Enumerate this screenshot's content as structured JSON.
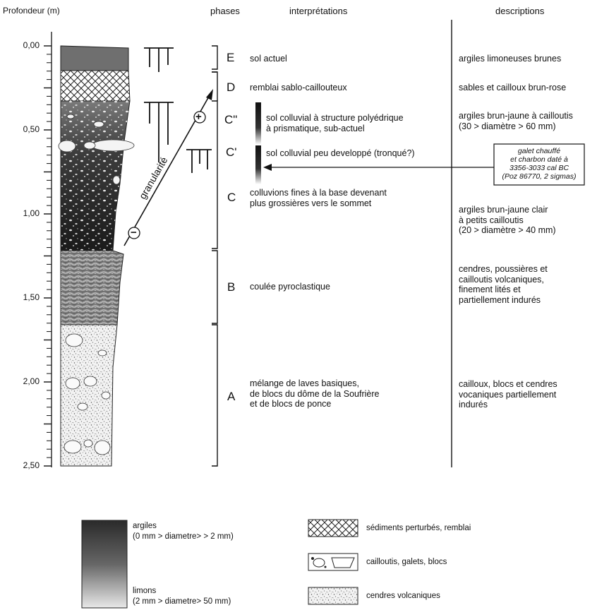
{
  "headers": {
    "depth": "Profondeur (m)",
    "phases": "phases",
    "interpretations": "interprétations",
    "descriptions": "descriptions"
  },
  "depth_ticks": [
    "0,00",
    "0,50",
    "1,00",
    "1,50",
    "2,00",
    "2,50"
  ],
  "phases": [
    {
      "letter": "E",
      "interpretation": "sol actuel",
      "description": "argiles limoneuses brunes"
    },
    {
      "letter": "D",
      "interpretation": "remblai sablo-caillouteux",
      "description": "sables et cailloux brun-rose"
    },
    {
      "letter": "C\"",
      "interpretation": "sol colluvial à structure polyédrique\nà prismatique, sub-actuel",
      "description": "argiles brun-jaune à cailloutis\n(30 > diamètre > 60 mm)"
    },
    {
      "letter": "C'",
      "interpretation": "sol colluvial peu developpé (tronqué?)"
    },
    {
      "letter": "C",
      "interpretation": "colluvions fines à la base devenant\nplus grossières vers le sommet",
      "description": "argiles brun-jaune clair\nà petits cailloutis\n(20 > diamètre > 40 mm)"
    },
    {
      "letter": "B",
      "interpretation": "coulée pyroclastique",
      "description": "cendres, poussières et\ncailloutis volcaniques,\nfinement lités et\npartiellement indurés"
    },
    {
      "letter": "A",
      "interpretation": "mélange de laves basiques,\nde blocs du dôme de la Soufrière\net de blocs de ponce",
      "description": "cailloux, blocs et cendres\nvocaniques partiellement\nindurés"
    }
  ],
  "dating_box": "galet chauffé\net charbon daté à\n3356-3033 cal BC\n(Poz 86770, 2 sigmas)",
  "granularity": {
    "label": "granularité",
    "plus": "+",
    "minus": "−"
  },
  "legend": {
    "gradient_top": "argiles\n(0 mm > diametre> > 2  mm)",
    "gradient_bottom": "limons\n(2 mm > diametre> 50  mm)",
    "items": [
      "sédiments perturbés, remblai",
      "cailloutis, galets, blocs",
      "cendres volcaniques"
    ]
  },
  "colors": {
    "dark": "#2a2a2a",
    "soil": "#6f6f6f",
    "line": "#111111"
  }
}
